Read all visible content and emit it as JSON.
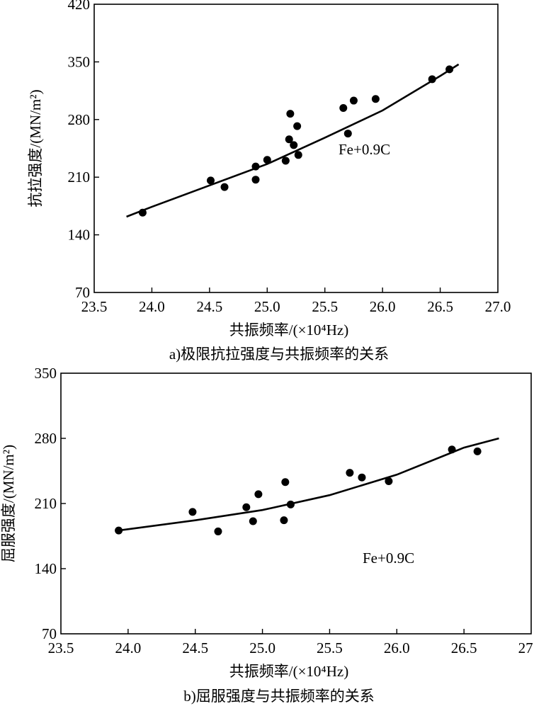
{
  "chart_data": [
    {
      "type": "scatter",
      "title": "a)极限抗拉强度与共振频率的关系",
      "xlabel": "共振频率/(×10⁴Hz)",
      "ylabel": "抗拉强度/(MN/m²)",
      "xlim": [
        23.5,
        27.0
      ],
      "ylim": [
        70,
        420
      ],
      "xticks": [
        "23.5",
        "24.0",
        "24.5",
        "25.0",
        "25.5",
        "26.0",
        "26.5",
        "27.0"
      ],
      "yticks": [
        "70",
        "140",
        "210",
        "280",
        "350",
        "420"
      ],
      "annotation": "Fe+0.9C",
      "points": [
        [
          23.92,
          167
        ],
        [
          24.51,
          206
        ],
        [
          24.63,
          198
        ],
        [
          24.9,
          223
        ],
        [
          24.9,
          207
        ],
        [
          25.0,
          231
        ],
        [
          25.16,
          230
        ],
        [
          25.2,
          287
        ],
        [
          25.19,
          256
        ],
        [
          25.26,
          272
        ],
        [
          25.23,
          249
        ],
        [
          25.27,
          237
        ],
        [
          25.66,
          294
        ],
        [
          25.75,
          303
        ],
        [
          25.7,
          263
        ],
        [
          25.94,
          305
        ],
        [
          26.43,
          329
        ],
        [
          26.58,
          341
        ]
      ],
      "fit_curve": [
        [
          23.78,
          162
        ],
        [
          24.0,
          174
        ],
        [
          24.5,
          200
        ],
        [
          25.0,
          226
        ],
        [
          25.5,
          258
        ],
        [
          26.0,
          291
        ],
        [
          26.5,
          333
        ],
        [
          26.66,
          347
        ]
      ]
    },
    {
      "type": "scatter",
      "title": "b)屈服强度与共振频率的关系",
      "xlabel": "共振频率/(×10⁴Hz)",
      "ylabel": "屈服强度/(MN/m²)",
      "xlim": [
        23.5,
        27.0
      ],
      "ylim": [
        70,
        350
      ],
      "xticks": [
        "23.5",
        "24.0",
        "24.5",
        "25.0",
        "25.5",
        "26.0",
        "26.5",
        "27.0"
      ],
      "yticks": [
        "70",
        "140",
        "210",
        "280",
        "350"
      ],
      "annotation": "Fe+0.9C",
      "points": [
        [
          23.93,
          181
        ],
        [
          24.48,
          201
        ],
        [
          24.67,
          180
        ],
        [
          24.88,
          206
        ],
        [
          24.93,
          191
        ],
        [
          24.97,
          220
        ],
        [
          25.16,
          192
        ],
        [
          25.17,
          233
        ],
        [
          25.21,
          209
        ],
        [
          25.65,
          243
        ],
        [
          25.74,
          238
        ],
        [
          25.94,
          234
        ],
        [
          26.41,
          268
        ],
        [
          26.6,
          266
        ]
      ],
      "fit_curve": [
        [
          23.93,
          181
        ],
        [
          24.5,
          192
        ],
        [
          25.0,
          203
        ],
        [
          25.5,
          219
        ],
        [
          26.0,
          241
        ],
        [
          26.5,
          270
        ],
        [
          26.76,
          280
        ]
      ]
    }
  ]
}
